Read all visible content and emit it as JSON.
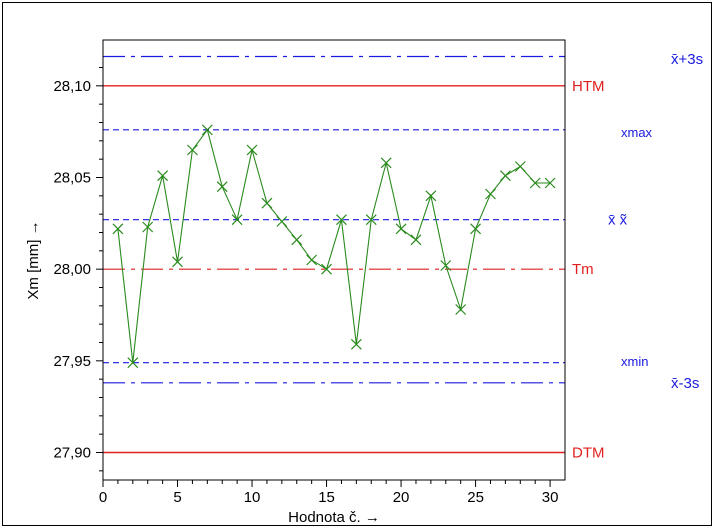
{
  "chart_data": {
    "type": "line",
    "xlabel": "Hodnota č. →",
    "ylabel": "Xm [mm] →",
    "xlim": [
      0,
      31
    ],
    "ylim": [
      27.885,
      28.125
    ],
    "x_ticks": [
      0,
      5,
      10,
      15,
      20,
      25,
      30
    ],
    "x_tick_labels": [
      "0",
      "5",
      "10",
      "15",
      "20",
      "25",
      "30"
    ],
    "y_ticks": [
      27.9,
      27.95,
      28.0,
      28.05,
      28.1
    ],
    "y_tick_labels": [
      "27,90",
      "27,95",
      "28,00",
      "28,05",
      "28,10"
    ],
    "grid": false,
    "colors": {
      "series": "#2a8a1e",
      "limits": "#e02020",
      "stats": "#1a1ae0",
      "axis": "#000000"
    },
    "series": [
      {
        "marker": "x",
        "x": [
          1,
          2,
          3,
          4,
          5,
          6,
          7,
          8,
          9,
          10,
          11,
          12,
          13,
          14,
          15,
          16,
          17,
          18,
          19,
          20,
          21,
          22,
          23,
          24,
          25,
          26,
          27,
          28,
          29,
          30
        ],
        "values": [
          28.022,
          27.949,
          28.023,
          28.051,
          28.004,
          28.065,
          28.076,
          28.045,
          28.027,
          28.065,
          28.036,
          28.026,
          28.016,
          28.005,
          28.0,
          28.027,
          27.959,
          28.027,
          28.058,
          28.022,
          28.016,
          28.04,
          28.002,
          27.978,
          28.022,
          28.041,
          28.051,
          28.056,
          28.047,
          28.047
        ]
      }
    ],
    "reference_lines": [
      {
        "id": "ucl",
        "value": 28.116,
        "color": "#1a1ae0",
        "style": "dashdot",
        "label": "x̄+3s"
      },
      {
        "id": "htm",
        "value": 28.1,
        "color": "#e02020",
        "style": "solid",
        "label": "HTM"
      },
      {
        "id": "xmax",
        "value": 28.076,
        "color": "#1a1ae0",
        "style": "dashed",
        "label": "xmax"
      },
      {
        "id": "mean",
        "value": 28.027,
        "color": "#1a1ae0",
        "style": "dashed",
        "label": "x̄  x̃"
      },
      {
        "id": "tm",
        "value": 28.0,
        "color": "#e02020",
        "style": "dashdot",
        "label": "Tm"
      },
      {
        "id": "xmin",
        "value": 27.949,
        "color": "#1a1ae0",
        "style": "dashed",
        "label": "xmin"
      },
      {
        "id": "lcl",
        "value": 27.938,
        "color": "#1a1ae0",
        "style": "dashdot",
        "label": "x̄-3s"
      },
      {
        "id": "dtm",
        "value": 27.9,
        "color": "#e02020",
        "style": "solid",
        "label": "DTM"
      }
    ]
  }
}
